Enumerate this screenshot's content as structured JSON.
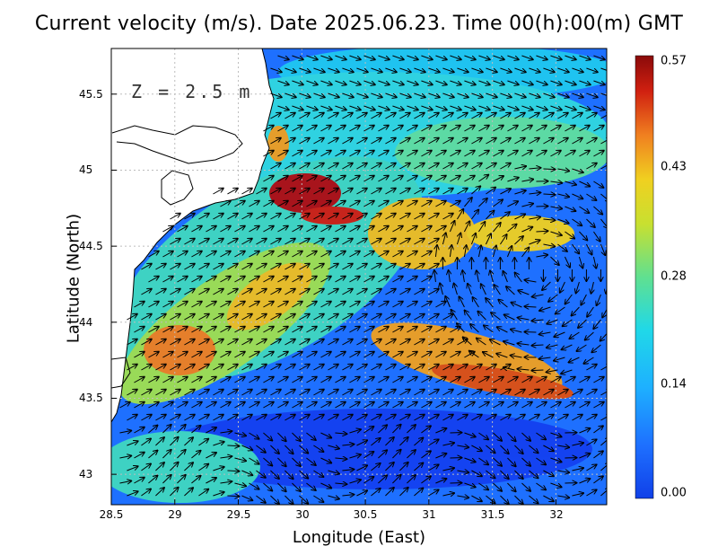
{
  "title": "Current velocity (m/s). Date 2025.06.23. Time 00(h):00(m) GMT",
  "depth_label": "Z = 2.5 m",
  "axes": {
    "xlabel": "Longitude (East)",
    "ylabel": "Latitude (North)",
    "x_ticks": [
      "28.5",
      "29",
      "29.5",
      "30",
      "30.5",
      "31",
      "31.5",
      "32"
    ],
    "y_ticks": [
      "45.5",
      "45",
      "44.5",
      "44",
      "43.5",
      "43"
    ],
    "xlim": [
      28.5,
      32.4
    ],
    "ylim": [
      42.8,
      45.8
    ],
    "grid": true
  },
  "colorbar": {
    "ticks": [
      "0.57",
      "0.43",
      "0.28",
      "0.14",
      "0.00"
    ],
    "min": 0.0,
    "max": 0.57,
    "colors": [
      "#1040e8",
      "#1e90ff",
      "#20d0f0",
      "#40e0a0",
      "#b0e040",
      "#f0e020",
      "#f0a020",
      "#e05010",
      "#b01010",
      "#8a0a0a"
    ]
  },
  "colors": {
    "land": "#ffffff",
    "coastline": "#000000",
    "low_speed": "#1040e8",
    "high_speed": "#b01010"
  }
}
